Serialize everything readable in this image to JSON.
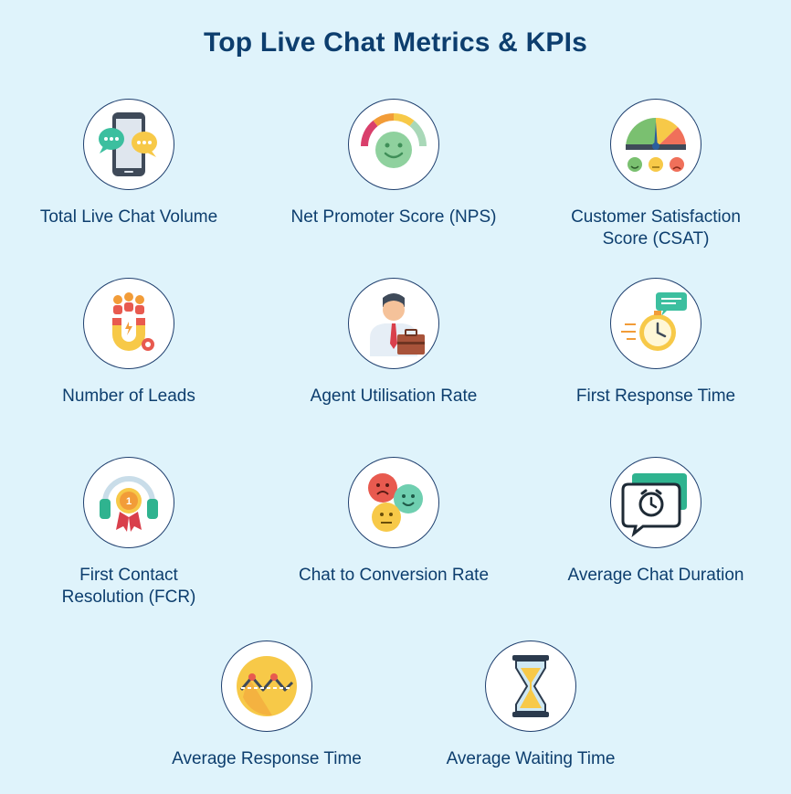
{
  "title": "Top Live Chat Metrics & KPIs",
  "metrics": [
    {
      "label": "Total Live Chat Volume",
      "icon": "chat-phone-icon"
    },
    {
      "label": "Net Promoter Score (NPS)",
      "icon": "nps-gauge-icon"
    },
    {
      "label": "Customer Satisfaction\nScore (CSAT)",
      "icon": "satisfaction-meter-icon"
    },
    {
      "label": "Number of Leads",
      "icon": "lead-magnet-icon"
    },
    {
      "label": "Agent Utilisation Rate",
      "icon": "agent-briefcase-icon"
    },
    {
      "label": "First Response Time",
      "icon": "stopwatch-chat-icon"
    },
    {
      "label": "First Contact\nResolution (FCR)",
      "icon": "headset-medal-icon"
    },
    {
      "label": "Chat to Conversion Rate",
      "icon": "emoji-faces-icon"
    },
    {
      "label": "Average Chat Duration",
      "icon": "chat-clock-icon"
    },
    {
      "label": "Average Response Time",
      "icon": "response-chart-icon"
    },
    {
      "label": "Average Waiting Time",
      "icon": "hourglass-icon"
    }
  ]
}
